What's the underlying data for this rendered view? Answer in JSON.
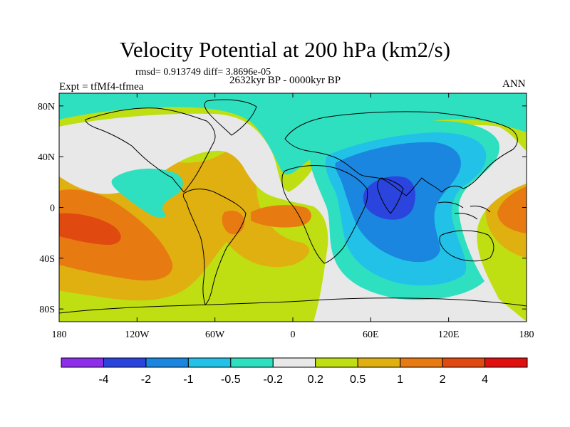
{
  "header": {
    "title": "Velocity Potential at 200 hPa (km2/s)",
    "stats": "rmsd= 0.913749 diff= 3.8696e-05",
    "period": "2632kyr BP - 0000kyr BP",
    "experiment": "Expt = tfMf4-tfmea",
    "season": "ANN"
  },
  "chart_data": {
    "type": "filled-contour-map",
    "title": "Velocity Potential at 200 hPa (km2/s)",
    "xlim": [
      -180,
      180
    ],
    "ylim": [
      -90,
      90
    ],
    "x_ticks": [
      {
        "value": -180,
        "label": "180"
      },
      {
        "value": -120,
        "label": "120W"
      },
      {
        "value": -60,
        "label": "60W"
      },
      {
        "value": 0,
        "label": "0"
      },
      {
        "value": 60,
        "label": "60E"
      },
      {
        "value": 120,
        "label": "120E"
      },
      {
        "value": 180,
        "label": "180"
      }
    ],
    "y_ticks": [
      {
        "value": 80,
        "label": "80N"
      },
      {
        "value": 40,
        "label": "40N"
      },
      {
        "value": 0,
        "label": "0"
      },
      {
        "value": -40,
        "label": "40S"
      },
      {
        "value": -80,
        "label": "80S"
      }
    ],
    "colorbar": {
      "levels": [
        "-4",
        "-2",
        "-1",
        "-0.5",
        "-0.2",
        "0.2",
        "0.5",
        "1",
        "2",
        "4"
      ],
      "colors": [
        "#8e2eea",
        "#2a44dd",
        "#1a86e0",
        "#22c2e8",
        "#2ee0c0",
        "#e8e8e8",
        "#bfdf12",
        "#e0b010",
        "#e87a12",
        "#e04a10",
        "#e01010"
      ]
    },
    "regions": [
      {
        "name": "max-central-pacific",
        "level_index": 9,
        "lon": -165,
        "lat": -15
      },
      {
        "name": "high-east-pacific",
        "level_index": 8,
        "lon": -140,
        "lat": -20
      },
      {
        "name": "high-atlantic",
        "level_index": 8,
        "lon": -15,
        "lat": 0
      },
      {
        "name": "min-indian-ocean",
        "level_index": 1,
        "lon": 75,
        "lat": 5
      },
      {
        "name": "low-asia-indian",
        "level_index": 2,
        "lon": 70,
        "lat": 0
      }
    ]
  }
}
